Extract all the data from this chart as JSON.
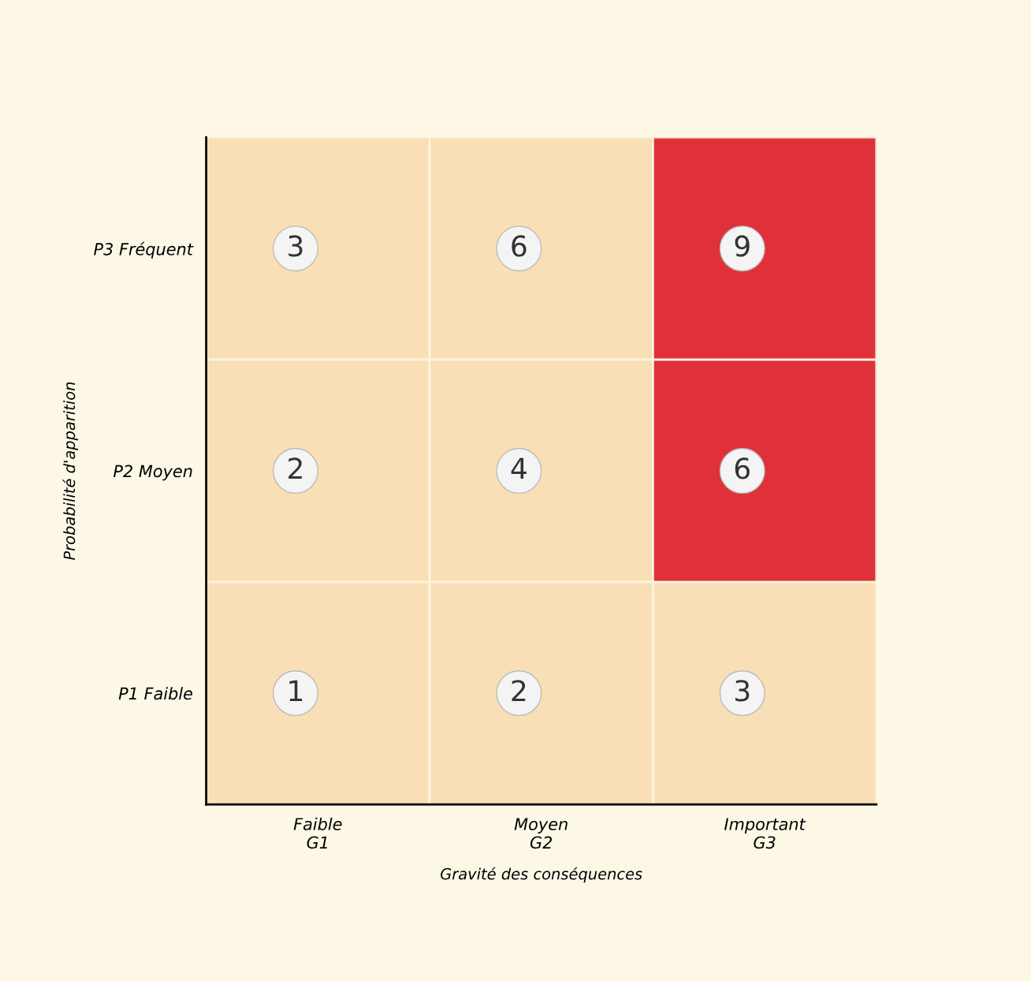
{
  "chart_data": {
    "type": "heatmap",
    "xlabel": "Gravité des conséquences",
    "ylabel": "Probabilité d'apparition",
    "categories": [
      "Faible\nG1",
      "Moyen\nG2",
      "Important\nG3"
    ],
    "y_categories": [
      "P3 Fréquent",
      "P2 Moyen",
      "P1 Faible"
    ],
    "cells": [
      [
        3,
        6,
        9
      ],
      [
        2,
        4,
        6
      ],
      [
        1,
        2,
        3
      ]
    ],
    "colors": [
      "#f9dfb5",
      "#f9dfb5",
      "#e0313a",
      "#f9dfb5",
      "#f9dfb5",
      "#e0313a",
      "#f9dfb5",
      "#f9dfb5",
      "#f9dfb5"
    ],
    "data_labels": true
  }
}
